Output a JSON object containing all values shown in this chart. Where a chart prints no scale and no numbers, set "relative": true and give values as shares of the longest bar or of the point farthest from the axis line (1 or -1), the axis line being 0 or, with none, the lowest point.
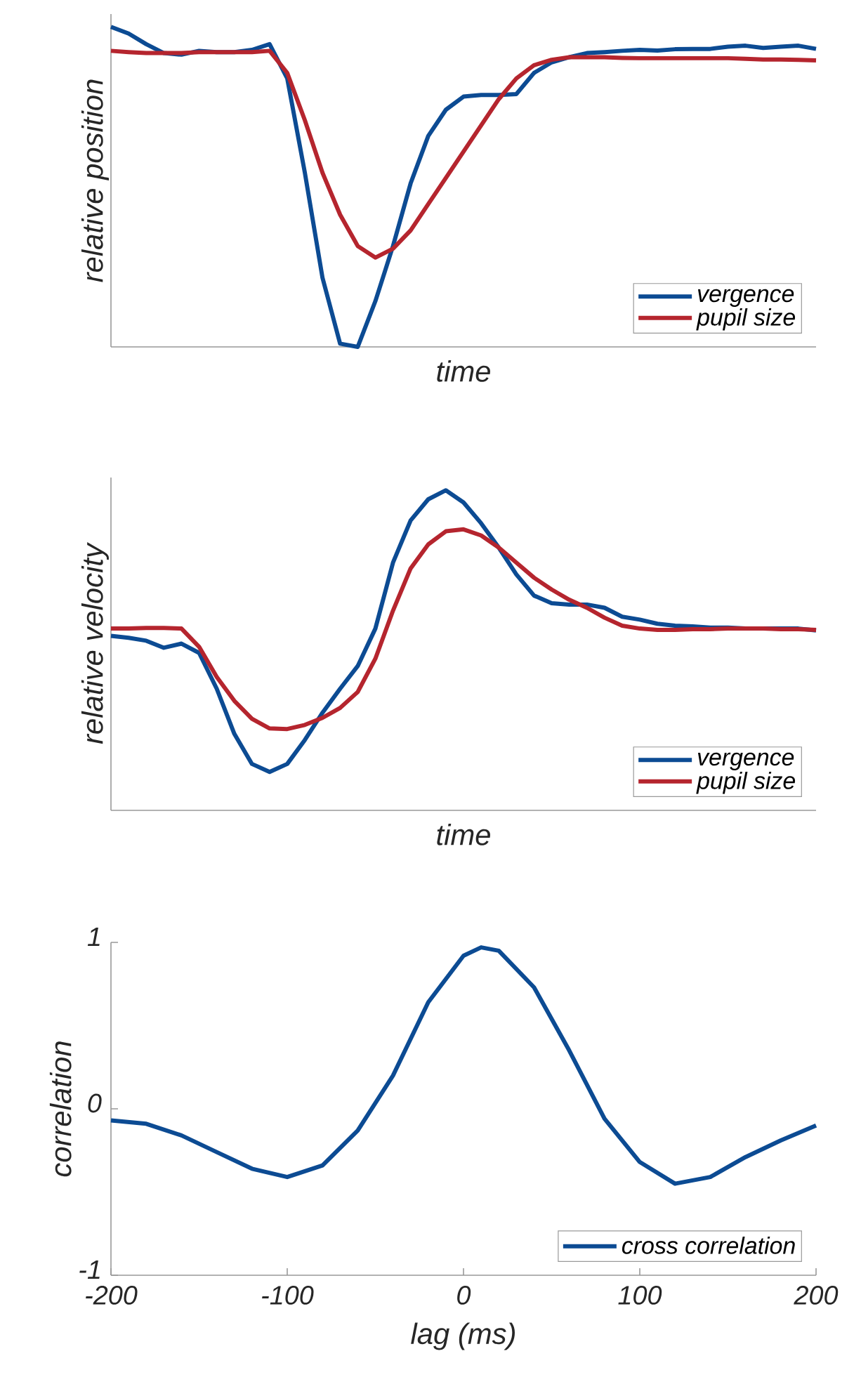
{
  "chart_data": [
    {
      "type": "line",
      "relative": true,
      "xlabel": "time",
      "ylabel": "relative position",
      "legend": "bottom right",
      "grid": false,
      "categories": [
        null,
        null,
        null,
        null,
        null,
        null,
        null,
        null,
        null,
        null,
        null,
        null,
        null,
        null,
        null,
        null,
        null,
        null,
        null,
        null,
        null,
        null,
        null,
        null,
        null,
        null,
        null,
        null,
        null,
        null,
        null,
        null,
        null,
        null,
        null,
        null,
        null,
        null,
        null,
        null,
        null
      ],
      "series": [
        {
          "name": "vergence",
          "color": "#0c4b93",
          "values": [
            1.0,
            0.979,
            0.946,
            0.918,
            0.913,
            0.925,
            0.921,
            0.921,
            0.928,
            0.946,
            0.839,
            0.544,
            0.216,
            0.01,
            0.0,
            0.143,
            0.315,
            0.511,
            0.659,
            0.741,
            0.782,
            0.787,
            0.787,
            0.79,
            0.856,
            0.889,
            0.905,
            0.918,
            0.921,
            0.925,
            0.928,
            0.926,
            0.93,
            0.931,
            0.931,
            0.938,
            0.941,
            0.934,
            0.938,
            0.941,
            0.931
          ]
        },
        {
          "name": "pupil size",
          "color": "#b5252e",
          "values": [
            0.925,
            0.921,
            0.918,
            0.918,
            0.918,
            0.921,
            0.921,
            0.921,
            0.921,
            0.925,
            0.856,
            0.708,
            0.544,
            0.413,
            0.315,
            0.279,
            0.307,
            0.364,
            0.446,
            0.528,
            0.61,
            0.692,
            0.774,
            0.839,
            0.88,
            0.897,
            0.905,
            0.905,
            0.905,
            0.903,
            0.902,
            0.902,
            0.902,
            0.902,
            0.902,
            0.902,
            0.9,
            0.898,
            0.898,
            0.897,
            0.895
          ]
        }
      ]
    },
    {
      "type": "line",
      "relative": true,
      "xlabel": "time",
      "ylabel": "relative velocity",
      "legend": "bottom right",
      "grid": false,
      "categories": [
        null,
        null,
        null,
        null,
        null,
        null,
        null,
        null,
        null,
        null,
        null,
        null,
        null,
        null,
        null,
        null,
        null,
        null,
        null,
        null,
        null,
        null,
        null,
        null,
        null,
        null,
        null,
        null,
        null,
        null,
        null,
        null,
        null,
        null,
        null,
        null,
        null,
        null,
        null,
        null,
        null
      ],
      "series": [
        {
          "name": "vergence",
          "color": "#0c4b93",
          "values": [
            0.545,
            0.539,
            0.53,
            0.508,
            0.521,
            0.492,
            0.38,
            0.239,
            0.145,
            0.12,
            0.145,
            0.22,
            0.305,
            0.38,
            0.451,
            0.568,
            0.774,
            0.906,
            0.972,
            1.0,
            0.962,
            0.897,
            0.821,
            0.737,
            0.671,
            0.647,
            0.643,
            0.643,
            0.633,
            0.605,
            0.596,
            0.583,
            0.577,
            0.575,
            0.571,
            0.571,
            0.568,
            0.568,
            0.568,
            0.568,
            0.562
          ]
        },
        {
          "name": "pupil size",
          "color": "#b5252e",
          "values": [
            0.568,
            0.568,
            0.57,
            0.57,
            0.568,
            0.511,
            0.417,
            0.342,
            0.286,
            0.256,
            0.254,
            0.267,
            0.289,
            0.32,
            0.37,
            0.474,
            0.624,
            0.756,
            0.831,
            0.872,
            0.878,
            0.859,
            0.821,
            0.774,
            0.727,
            0.69,
            0.658,
            0.633,
            0.602,
            0.577,
            0.568,
            0.564,
            0.564,
            0.566,
            0.566,
            0.568,
            0.568,
            0.568,
            0.566,
            0.566,
            0.564
          ]
        }
      ]
    },
    {
      "type": "line",
      "xlabel": "lag (ms)",
      "ylabel": "correlation",
      "legend": "bottom right",
      "grid": false,
      "x": [
        -200,
        -180,
        -160,
        -140,
        -120,
        -100,
        -80,
        -60,
        -40,
        -20,
        0,
        10,
        20,
        40,
        60,
        80,
        100,
        120,
        140,
        160,
        180,
        200
      ],
      "xlim": [
        -200,
        200
      ],
      "ylim": [
        -1,
        1
      ],
      "xticks": [
        -200,
        -100,
        0,
        100,
        200
      ],
      "yticks": [
        -1,
        0,
        1
      ],
      "series": [
        {
          "name": "cross correlation",
          "color": "#0c4b93",
          "values": [
            -0.07,
            -0.09,
            -0.16,
            -0.26,
            -0.36,
            -0.41,
            -0.34,
            -0.13,
            0.2,
            0.64,
            0.92,
            0.97,
            0.95,
            0.73,
            0.35,
            -0.06,
            -0.32,
            -0.45,
            -0.41,
            -0.29,
            -0.19,
            -0.1
          ]
        }
      ]
    }
  ]
}
